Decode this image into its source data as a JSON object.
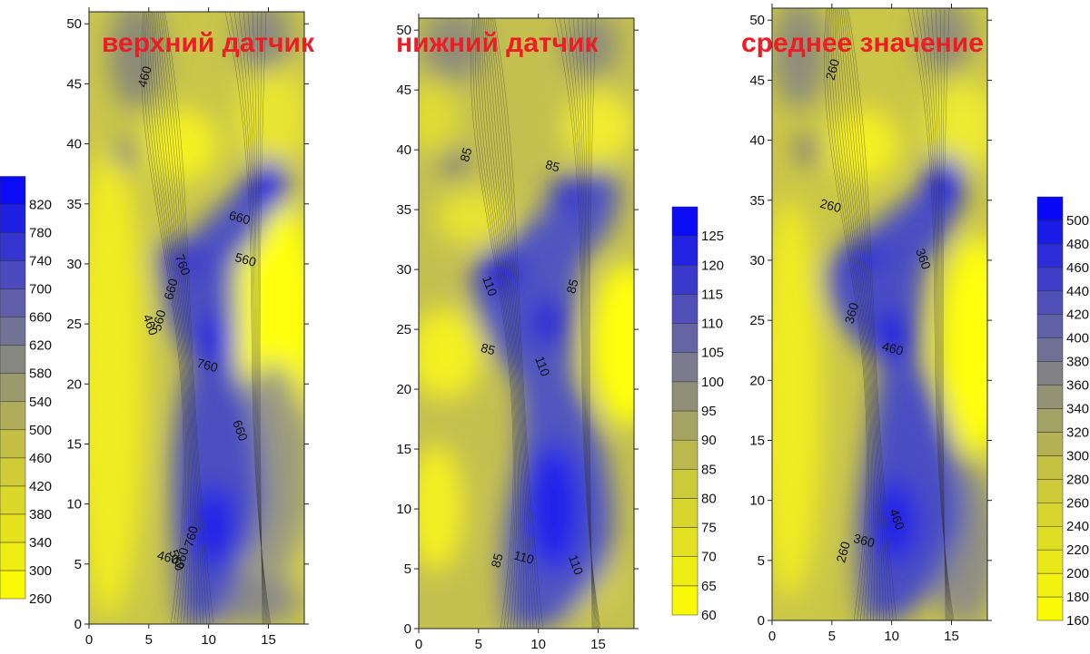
{
  "colors": {
    "low": "#ffff00",
    "high": "#0000ff",
    "title": "#ee1c25"
  },
  "chart_data": [
    {
      "type": "heatmap",
      "title": "верхний датчик",
      "xlim": [
        0,
        18
      ],
      "ylim": [
        0,
        51
      ],
      "xticks": [
        "0",
        "5",
        "10",
        "15"
      ],
      "yticks": [
        "0",
        "5",
        "10",
        "15",
        "20",
        "25",
        "30",
        "35",
        "40",
        "45",
        "50"
      ],
      "colorbar": {
        "min": 260,
        "max": 840,
        "ticks": [
          "260",
          "300",
          "340",
          "380",
          "420",
          "460",
          "500",
          "540",
          "580",
          "620",
          "660",
          "700",
          "740",
          "780",
          "820"
        ]
      },
      "contour_labels": [
        {
          "text": "460",
          "x": 5.0,
          "y": 45.5
        },
        {
          "text": "660",
          "x": 12.5,
          "y": 33.5
        },
        {
          "text": "760",
          "x": 7.5,
          "y": 29.8
        },
        {
          "text": "660",
          "x": 7.2,
          "y": 27.8
        },
        {
          "text": "560",
          "x": 13.0,
          "y": 30.0
        },
        {
          "text": "460",
          "x": 4.8,
          "y": 24.8
        },
        {
          "text": "560",
          "x": 6.2,
          "y": 25.2
        },
        {
          "text": "760",
          "x": 9.8,
          "y": 21.2
        },
        {
          "text": "660",
          "x": 12.3,
          "y": 16.0
        },
        {
          "text": "760",
          "x": 8.9,
          "y": 7.2
        },
        {
          "text": "460",
          "x": 6.5,
          "y": 5.2
        },
        {
          "text": "560",
          "x": 7.0,
          "y": 5.2
        },
        {
          "text": "660",
          "x": 8.1,
          "y": 5.4
        }
      ]
    },
    {
      "type": "heatmap",
      "title": "нижний датчик",
      "xlim": [
        0,
        18
      ],
      "ylim": [
        0,
        51
      ],
      "xticks": [
        "0",
        "5",
        "10",
        "15"
      ],
      "yticks": [
        "0",
        "5",
        "10",
        "15",
        "20",
        "25",
        "30",
        "35",
        "40",
        "45",
        "50"
      ],
      "colorbar": {
        "min": 60,
        "max": 130,
        "ticks": [
          "60",
          "65",
          "70",
          "75",
          "80",
          "85",
          "90",
          "95",
          "100",
          "105",
          "110",
          "115",
          "120",
          "125"
        ]
      },
      "contour_labels": [
        {
          "text": "85",
          "x": 4.3,
          "y": 39.5
        },
        {
          "text": "85",
          "x": 11.1,
          "y": 38.3
        },
        {
          "text": "110",
          "x": 5.6,
          "y": 28.5
        },
        {
          "text": "85",
          "x": 13.2,
          "y": 28.5
        },
        {
          "text": "85",
          "x": 5.7,
          "y": 23.0
        },
        {
          "text": "110",
          "x": 10.0,
          "y": 21.8
        },
        {
          "text": "85",
          "x": 6.9,
          "y": 5.6
        },
        {
          "text": "110",
          "x": 8.7,
          "y": 5.6
        },
        {
          "text": "110",
          "x": 12.8,
          "y": 5.2
        }
      ]
    },
    {
      "type": "heatmap",
      "title": "среднее значение",
      "xlim": [
        0,
        18
      ],
      "ylim": [
        0,
        51
      ],
      "xticks": [
        "0",
        "5",
        "10",
        "15"
      ],
      "yticks": [
        "0",
        "5",
        "10",
        "15",
        "20",
        "25",
        "30",
        "35",
        "40",
        "45",
        "50"
      ],
      "colorbar": {
        "min": 160,
        "max": 510,
        "ticks": [
          "160",
          "180",
          "200",
          "220",
          "240",
          "260",
          "280",
          "300",
          "320",
          "340",
          "360",
          "380",
          "400",
          "420",
          "440",
          "460",
          "480",
          "500"
        ]
      },
      "contour_labels": [
        {
          "text": "260",
          "x": 5.4,
          "y": 45.8
        },
        {
          "text": "260",
          "x": 4.8,
          "y": 34.2
        },
        {
          "text": "360",
          "x": 12.3,
          "y": 30.0
        },
        {
          "text": "360",
          "x": 7.0,
          "y": 25.5
        },
        {
          "text": "460",
          "x": 10.0,
          "y": 22.3
        },
        {
          "text": "460",
          "x": 10.1,
          "y": 8.3
        },
        {
          "text": "260",
          "x": 6.3,
          "y": 5.6
        },
        {
          "text": "360",
          "x": 7.6,
          "y": 6.3
        }
      ]
    }
  ]
}
